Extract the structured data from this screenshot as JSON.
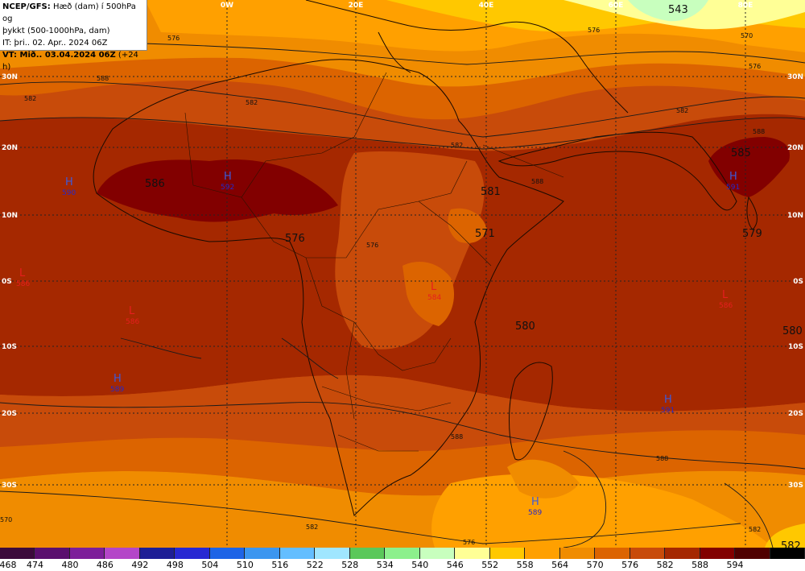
{
  "header": {
    "line1_bold": "NCEP/GFS:",
    "line1_rest": " Hæð (dam) í 500hPa og",
    "line2": "þykkt (500-1000hPa, dam)",
    "line3": "IT: þri.. 02. Apr.. 2024 06Z",
    "line4_bold": "VT: Mið.. 03.04.2024 06Z",
    "line4_rest": " (+24 h)"
  },
  "lon_labels": [
    "0W",
    "20E",
    "40E",
    "60E",
    "80E"
  ],
  "lat_labels": [
    "30N",
    "20N",
    "10N",
    "0S",
    "10S",
    "20S",
    "30S"
  ],
  "contour_labels": [
    "576",
    "570",
    "576",
    "582",
    "582",
    "582",
    "588",
    "588",
    "588",
    "576",
    "582",
    "588",
    "570",
    "576",
    "588",
    "582",
    "576",
    "582"
  ],
  "values": [
    "543",
    "586",
    "585",
    "581",
    "571",
    "576",
    "579",
    "580",
    "580"
  ],
  "highs": [
    {
      "letter": "H",
      "value": "590"
    },
    {
      "letter": "H",
      "value": "592"
    },
    {
      "letter": "H",
      "value": "591"
    },
    {
      "letter": "H",
      "value": "589"
    },
    {
      "letter": "H",
      "value": "591"
    },
    {
      "letter": "H",
      "value": "589"
    }
  ],
  "lows": [
    {
      "letter": "L",
      "value": "586"
    },
    {
      "letter": "L",
      "value": "586"
    },
    {
      "letter": "L",
      "value": "584"
    },
    {
      "letter": "L",
      "value": "586"
    }
  ],
  "corner_value": "582",
  "legend": {
    "values": [
      "468",
      "474",
      "480",
      "486",
      "492",
      "498",
      "504",
      "510",
      "516",
      "522",
      "528",
      "534",
      "540",
      "546",
      "552",
      "558",
      "564",
      "570",
      "576",
      "582",
      "588",
      "594"
    ],
    "colors": [
      "#3c0a3c",
      "#5a0f6e",
      "#7d1e9a",
      "#b446c8",
      "#1e1e96",
      "#2828d2",
      "#1e64e6",
      "#3c96f0",
      "#64beff",
      "#a0e6ff",
      "#5ac85a",
      "#8cf08c",
      "#c8ffbe",
      "#ffff96",
      "#ffc800",
      "#ffa000",
      "#f08c00",
      "#dc6400",
      "#c84b0a",
      "#a52800",
      "#820000",
      "#500000",
      "#000000"
    ]
  }
}
